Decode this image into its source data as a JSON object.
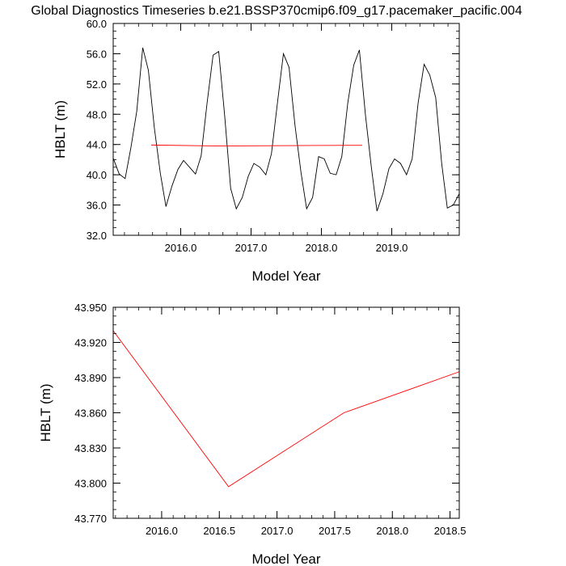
{
  "figure_title": "Global Diagnostics Timeseries b.e21.BSSP370cmip6.f09_g17.pacemaker_pacific.004",
  "chart_data": [
    {
      "type": "line",
      "title": "",
      "xlabel": "Model Year",
      "ylabel": "HBLT (m)",
      "xlim": [
        2015.04,
        2019.96
      ],
      "ylim": [
        32.0,
        60.0
      ],
      "xticks": [
        2016.0,
        2017.0,
        2018.0,
        2019.0
      ],
      "xtick_labels": [
        "2016.0",
        "2017.0",
        "2018.0",
        "2019.0"
      ],
      "yticks": [
        32.0,
        36.0,
        40.0,
        44.0,
        48.0,
        52.0,
        56.0,
        60.0
      ],
      "ytick_labels": [
        "32.0",
        "36.0",
        "40.0",
        "44.0",
        "48.0",
        "52.0",
        "56.0",
        "60.0"
      ],
      "grid": false,
      "series": [
        {
          "color": "#000000",
          "x": [
            2015.04,
            2015.125,
            2015.21,
            2015.29,
            2015.375,
            2015.46,
            2015.54,
            2015.625,
            2015.71,
            2015.79,
            2015.875,
            2015.96,
            2016.04,
            2016.125,
            2016.21,
            2016.29,
            2016.375,
            2016.46,
            2016.54,
            2016.625,
            2016.71,
            2016.79,
            2016.875,
            2016.96,
            2017.04,
            2017.125,
            2017.21,
            2017.29,
            2017.375,
            2017.46,
            2017.54,
            2017.625,
            2017.71,
            2017.79,
            2017.875,
            2017.96,
            2018.04,
            2018.125,
            2018.21,
            2018.29,
            2018.375,
            2018.46,
            2018.54,
            2018.625,
            2018.71,
            2018.79,
            2018.875,
            2018.96,
            2019.04,
            2019.125,
            2019.21,
            2019.29,
            2019.375,
            2019.46,
            2019.54,
            2019.625,
            2019.71,
            2019.79,
            2019.875,
            2019.96
          ],
          "y": [
            42.2,
            40.1,
            39.5,
            43.5,
            48.4,
            56.8,
            53.8,
            46.2,
            40.2,
            35.8,
            38.5,
            40.7,
            41.9,
            41.0,
            40.1,
            42.5,
            49.5,
            55.8,
            56.3,
            47.8,
            38.2,
            35.5,
            37.0,
            39.8,
            41.5,
            41.0,
            40.0,
            42.8,
            49.5,
            56.0,
            54.2,
            46.5,
            40.3,
            35.5,
            37.0,
            42.4,
            42.1,
            40.2,
            40.0,
            42.4,
            49.5,
            54.5,
            56.5,
            48.0,
            41.0,
            35.2,
            37.5,
            40.8,
            42.1,
            41.5,
            40.0,
            42.1,
            49.5,
            54.6,
            53.2,
            50.2,
            41.5,
            35.6,
            36.0,
            37.5
          ]
        },
        {
          "color": "#ff0000",
          "x": [
            2015.58,
            2016.58,
            2017.58,
            2018.58
          ],
          "y": [
            43.93,
            43.797,
            43.86,
            43.895
          ]
        }
      ]
    },
    {
      "type": "line",
      "title": "",
      "xlabel": "Model Year",
      "ylabel": "HBLT (m)",
      "xlim": [
        2015.58,
        2018.58
      ],
      "ylim": [
        43.77,
        43.95
      ],
      "xticks": [
        2016.0,
        2016.5,
        2017.0,
        2017.5,
        2018.0,
        2018.5
      ],
      "xtick_labels": [
        "2016.0",
        "2016.5",
        "2017.0",
        "2017.5",
        "2018.0",
        "2018.5"
      ],
      "yticks": [
        43.77,
        43.8,
        43.83,
        43.86,
        43.89,
        43.92,
        43.95
      ],
      "ytick_labels": [
        "43.770",
        "43.800",
        "43.830",
        "43.860",
        "43.890",
        "43.920",
        "43.950"
      ],
      "grid": false,
      "series": [
        {
          "color": "#ff0000",
          "x": [
            2015.58,
            2016.58,
            2017.58,
            2018.58
          ],
          "y": [
            43.93,
            43.797,
            43.86,
            43.895
          ]
        }
      ]
    }
  ]
}
